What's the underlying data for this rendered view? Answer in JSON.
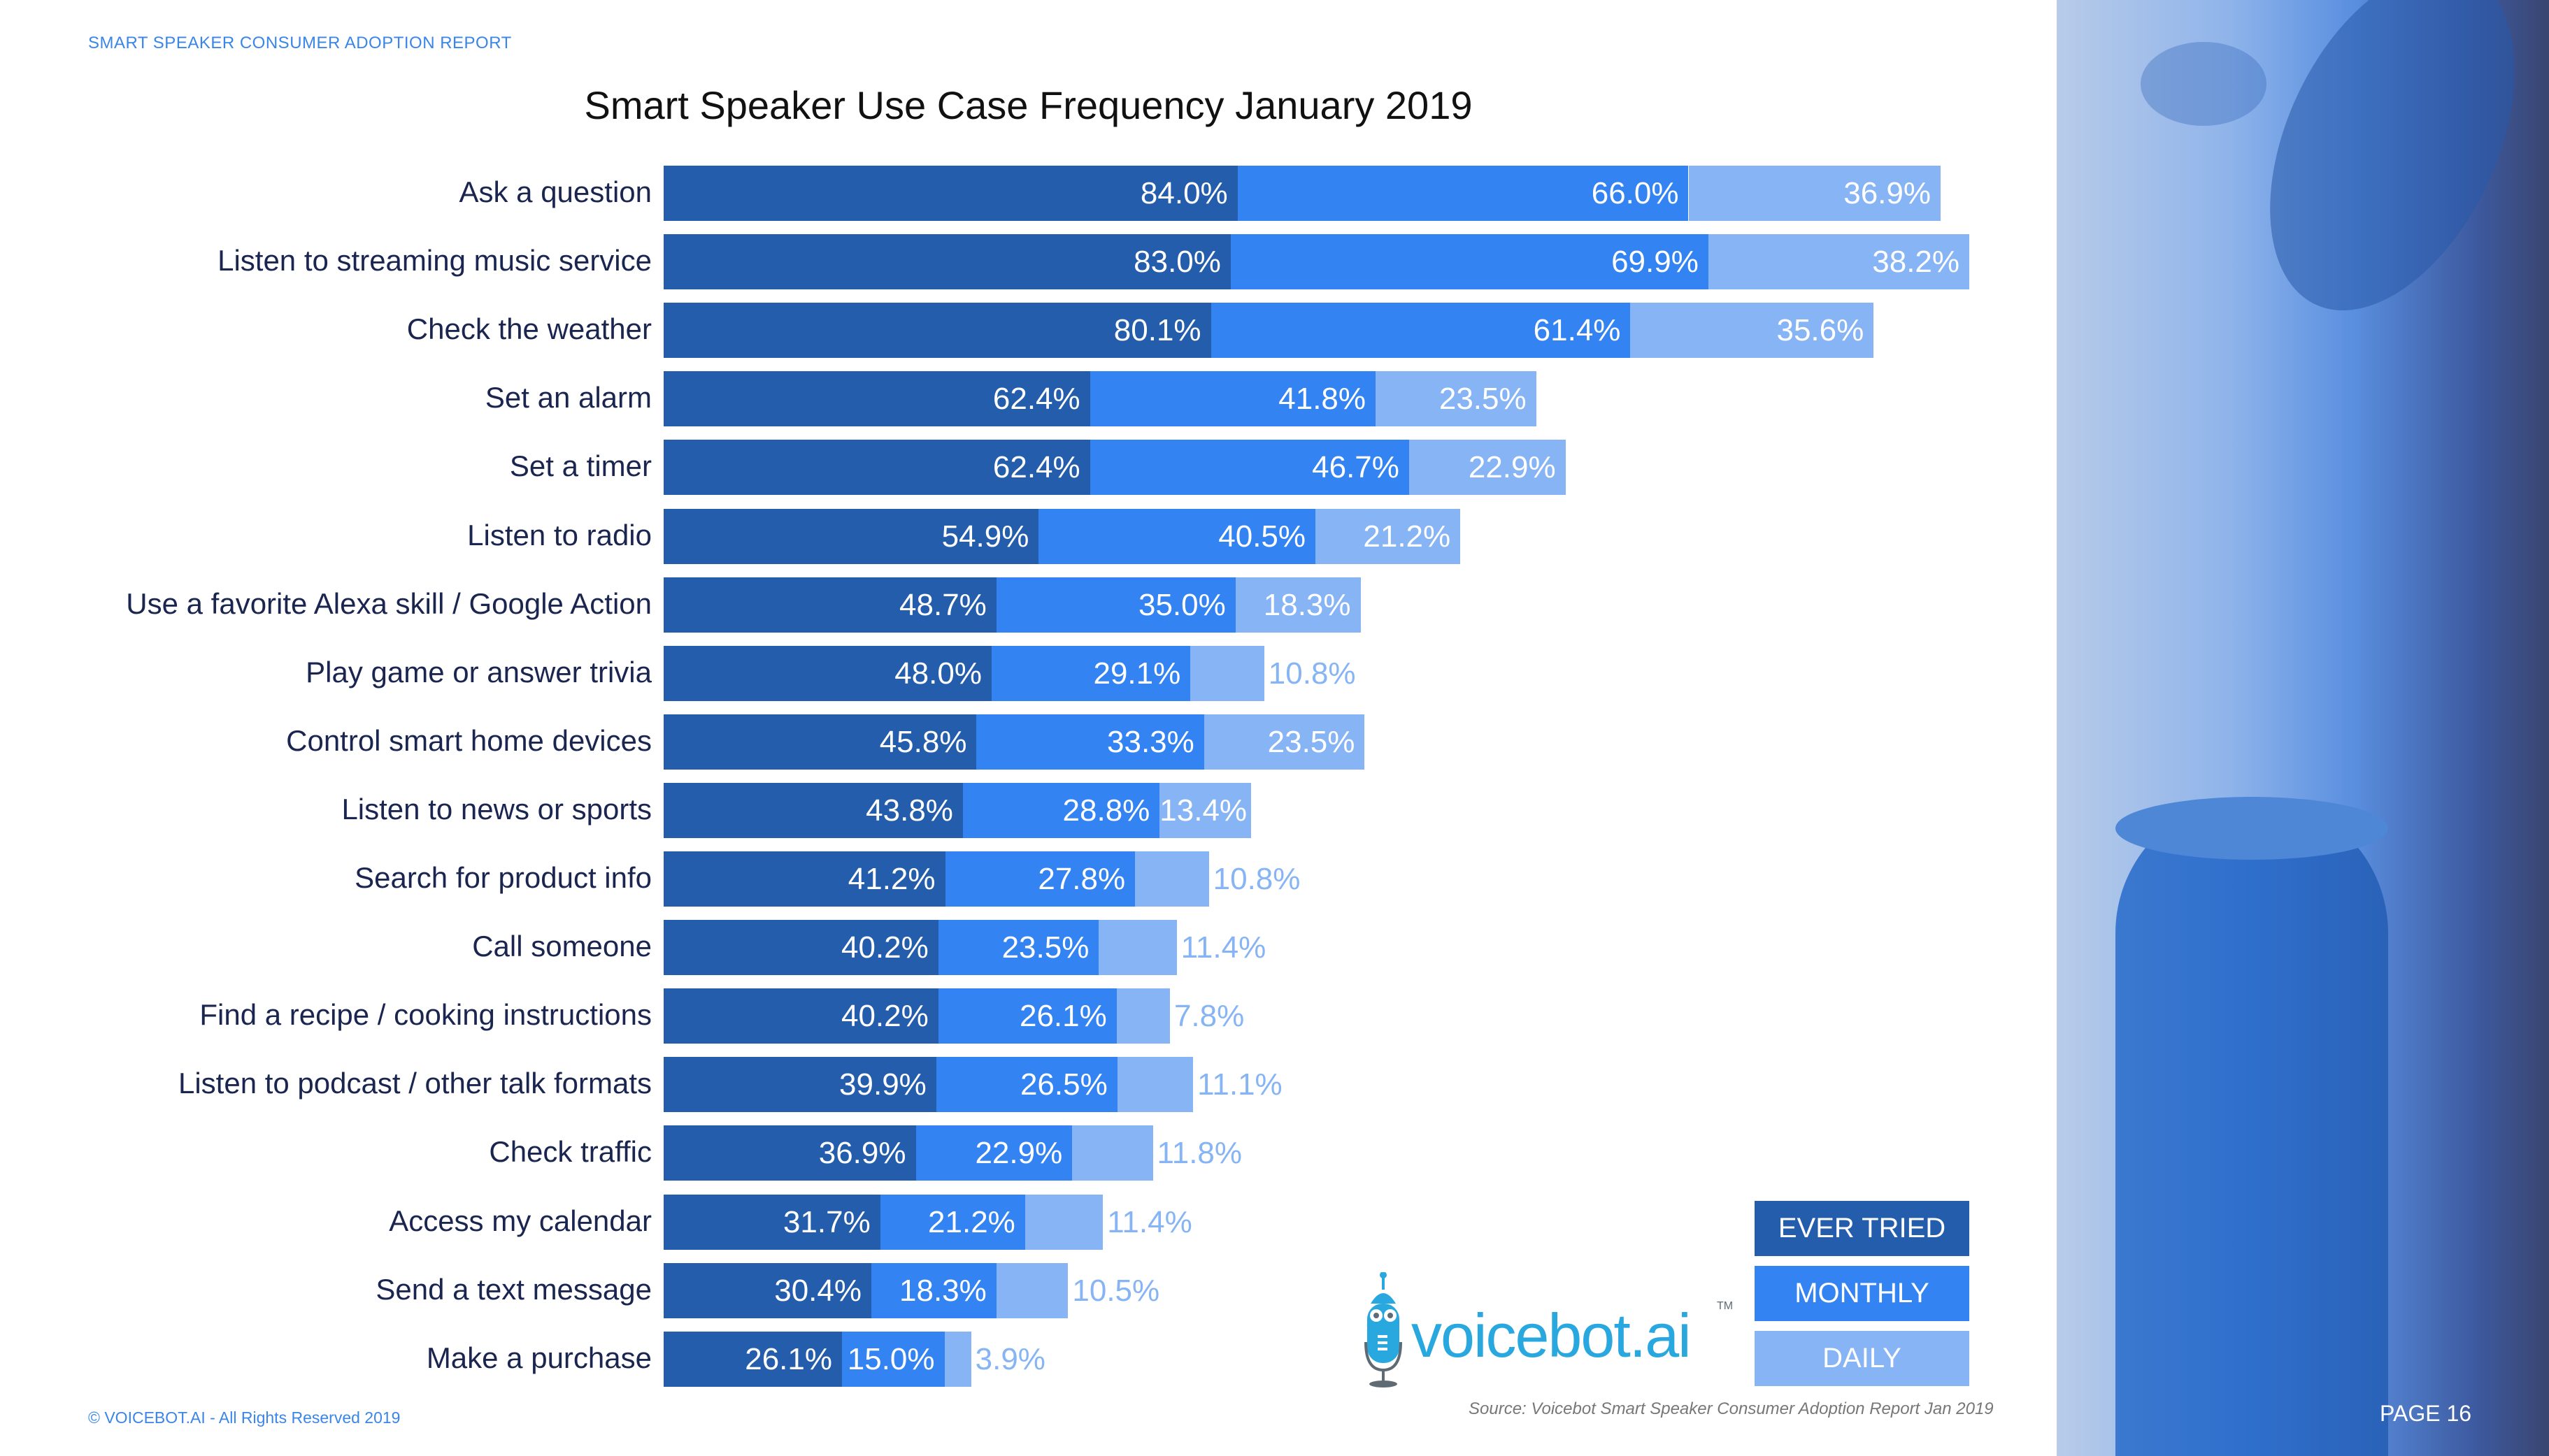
{
  "header": {
    "report": "SMART SPEAKER CONSUMER ADOPTION REPORT",
    "page": "PAGE 16"
  },
  "footer": {
    "copyright": "© VOICEBOT.AI - All Rights Reserved 2019",
    "source": "Source: Voicebot Smart Speaker Consumer Adoption Report Jan 2019"
  },
  "logo": {
    "text": "voicebot.ai",
    "tm": "TM"
  },
  "colors": {
    "ever_tried": "#235dab",
    "monthly": "#3384f2",
    "daily": "#86b4f5"
  },
  "chart_data": {
    "type": "bar",
    "orientation": "horizontal",
    "stacked": true,
    "title": "Smart Speaker Use Case Frequency January 2019",
    "legend_position": "bottom-right",
    "grid": false,
    "categories": [
      "Ask a question",
      "Listen to streaming music service",
      "Check the weather",
      "Set an alarm",
      "Set a timer",
      "Listen to radio",
      "Use a favorite Alexa skill / Google Action",
      "Play game or answer trivia",
      "Control smart home devices",
      "Listen to news or sports",
      "Search for product info",
      "Call someone",
      "Find a recipe / cooking instructions",
      "Listen to podcast / other talk formats",
      "Check traffic",
      "Access my calendar",
      "Send a text message",
      "Make a purchase"
    ],
    "series": [
      {
        "name": "EVER TRIED",
        "values": [
          84.0,
          83.0,
          80.1,
          62.4,
          62.4,
          54.9,
          48.7,
          48.0,
          45.8,
          43.8,
          41.2,
          40.2,
          40.2,
          39.9,
          36.9,
          31.7,
          30.4,
          26.1
        ]
      },
      {
        "name": "MONTHLY",
        "values": [
          66.0,
          69.9,
          61.4,
          41.8,
          46.7,
          40.5,
          35.0,
          29.1,
          33.3,
          28.8,
          27.8,
          23.5,
          26.1,
          26.5,
          22.9,
          21.2,
          18.3,
          15.0
        ]
      },
      {
        "name": "DAILY",
        "values": [
          36.9,
          38.2,
          35.6,
          23.5,
          22.9,
          21.2,
          18.3,
          10.8,
          23.5,
          13.4,
          10.8,
          11.4,
          7.8,
          11.1,
          11.8,
          11.4,
          10.5,
          3.9
        ]
      }
    ]
  }
}
